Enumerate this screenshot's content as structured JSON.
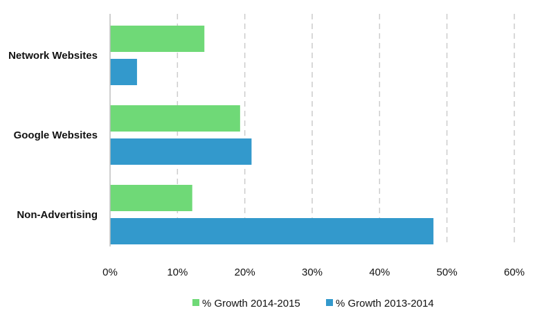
{
  "chart_data": {
    "type": "bar",
    "orientation": "horizontal",
    "title": "",
    "xlabel": "",
    "ylabel": "",
    "categories": [
      "Network Websites",
      "Google Websites",
      "Non-Advertising"
    ],
    "series": [
      {
        "name": "% Growth 2014-2015",
        "values": [
          14,
          19.3,
          12.2
        ],
        "color": "#6fd977"
      },
      {
        "name": "% Growth 2013-2014",
        "values": [
          4,
          21,
          48
        ],
        "color": "#3399cc"
      }
    ],
    "xlim": [
      0,
      60
    ],
    "xticks": [
      0,
      10,
      20,
      30,
      40,
      50,
      60
    ],
    "tick_labels": [
      "0%",
      "10%",
      "20%",
      "30%",
      "40%",
      "50%",
      "60%"
    ],
    "grid": {
      "vertical": true,
      "style": "dashed",
      "color": "#cccccc"
    },
    "legend": {
      "position": "bottom-right"
    }
  }
}
